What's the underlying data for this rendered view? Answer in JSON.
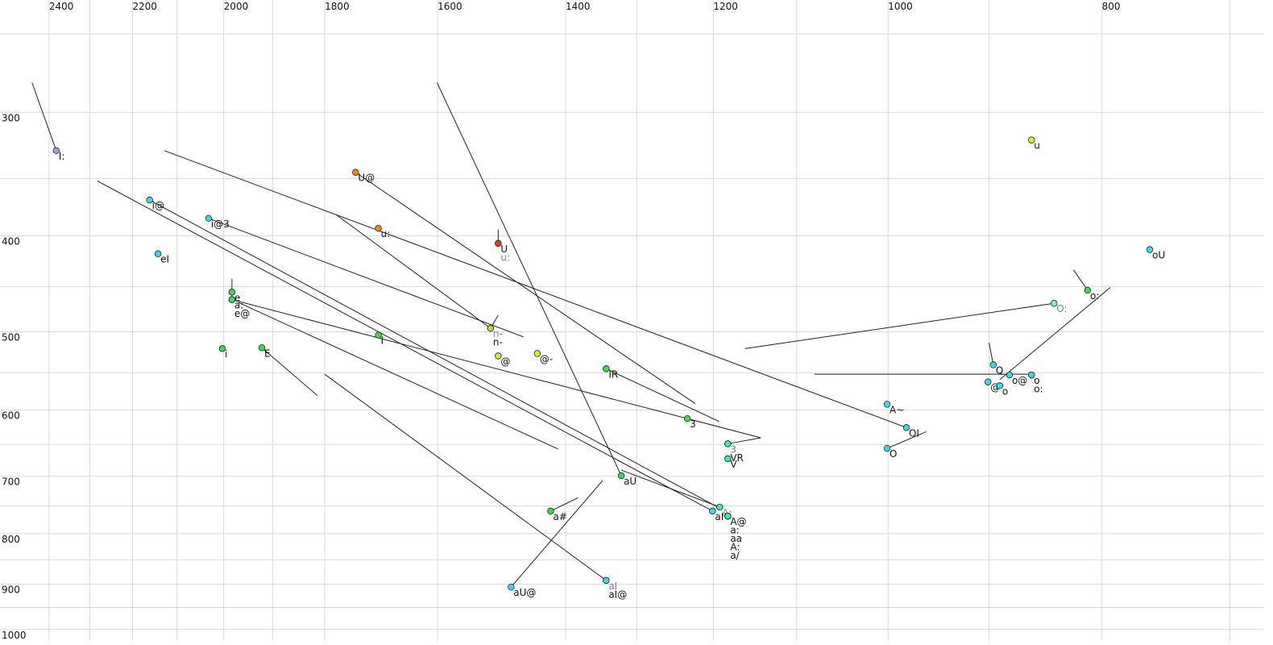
{
  "chart_data": {
    "type": "scatter",
    "log_scale": true,
    "grid": true,
    "xlim": [
      2526,
      676
    ],
    "ylim": [
      231,
      1027
    ],
    "xticks": [
      2400,
      2200,
      2000,
      1800,
      1600,
      1400,
      1200,
      1000,
      800
    ],
    "xgrid": [
      2300,
      2100,
      1900,
      1300,
      1100,
      900,
      700
    ],
    "yticks": [
      300,
      400,
      500,
      600,
      700,
      800,
      900,
      1000
    ],
    "ygrid": [
      250,
      350,
      450,
      550,
      650,
      750,
      850,
      950
    ],
    "points": [
      {
        "label": "I:",
        "x": 2382,
        "y": 328,
        "color": "#a89ce0"
      },
      {
        "label": "i@",
        "x": 2161,
        "y": 368,
        "color": "#40d8e8"
      },
      {
        "label": "i@3",
        "x": 2032,
        "y": 384,
        "color": "#40d8e8"
      },
      {
        "label": "eI",
        "x": 2142,
        "y": 417,
        "color": "#40d8e8"
      },
      {
        "label": "e",
        "x": 1983,
        "y": 456,
        "color": "#40d860"
      },
      {
        "label": "a:",
        "x": 1983,
        "y": 464,
        "color": "#40d860"
      },
      {
        "label": "e@",
        "x": 1983,
        "y": 464,
        "color": "#40d860"
      },
      {
        "label": "i",
        "x": 2003,
        "y": 520,
        "color": "#40d860"
      },
      {
        "label": "E",
        "x": 1922,
        "y": 519,
        "color": "#40d860"
      },
      {
        "label": "U@",
        "x": 1743,
        "y": 345,
        "color": "#f08c20"
      },
      {
        "label": "u:",
        "x": 1702,
        "y": 393,
        "color": "#f08c20"
      },
      {
        "label": "U",
        "x": 1502,
        "y": 407,
        "color": "#d84020"
      },
      {
        "label": "u:",
        "x": 1502,
        "y": 407,
        "color": "#d84020",
        "label_color": "#7080a8"
      },
      {
        "label": "n-",
        "x": 1514,
        "y": 496,
        "color": "#a8e040",
        "label_color": "#7080a8"
      },
      {
        "label": "n-",
        "x": 1514,
        "y": 496,
        "color": "#a8e040"
      },
      {
        "label": "@",
        "x": 1502,
        "y": 529,
        "color": "#c0f040"
      },
      {
        "label": "@-",
        "x": 1442,
        "y": 526,
        "color": "#e8f020"
      },
      {
        "label": "I",
        "x": 1702,
        "y": 504,
        "color": "#40d860"
      },
      {
        "label": "IR",
        "x": 1342,
        "y": 545,
        "color": "#40d860"
      },
      {
        "label": "3",
        "x": 1233,
        "y": 612,
        "color": "#40d860"
      },
      {
        "label": "3",
        "x": 1182,
        "y": 649,
        "color": "#40e8b0",
        "label_color": "#7080a8"
      },
      {
        "label": "VR",
        "x": 1182,
        "y": 649,
        "color": "#40e8b0"
      },
      {
        "label": "V",
        "x": 1182,
        "y": 672,
        "color": "#40e8b0"
      },
      {
        "label": "aU",
        "x": 1321,
        "y": 699,
        "color": "#40d860"
      },
      {
        "label": "a#",
        "x": 1422,
        "y": 759,
        "color": "#40d860"
      },
      {
        "label": "aU@",
        "x": 1482,
        "y": 906,
        "color": "#40d8e8"
      },
      {
        "label": "aI",
        "x": 1342,
        "y": 892,
        "color": "#40d8e8",
        "label_color": "#7080a8"
      },
      {
        "label": "aI@",
        "x": 1342,
        "y": 892,
        "color": "#40d8e8"
      },
      {
        "label": "A:",
        "x": 1192,
        "y": 752,
        "color": "#40e8c0",
        "label_color": "#7080a8"
      },
      {
        "label": "aI",
        "x": 1201,
        "y": 759,
        "color": "#40d8e8"
      },
      {
        "label": "A@",
        "x": 1182,
        "y": 768,
        "color": "#40e8b0"
      },
      {
        "label": "a:",
        "x": 1182,
        "y": 768,
        "color": "#40e8b0"
      },
      {
        "label": "aa",
        "x": 1182,
        "y": 768,
        "color": "#40e8b0"
      },
      {
        "label": "A:",
        "x": 1182,
        "y": 768,
        "color": "#40e8b0"
      },
      {
        "label": "a/",
        "x": 1182,
        "y": 768,
        "color": "#40e8b0"
      },
      {
        "label": "A~",
        "x": 1001,
        "y": 592,
        "color": "#40d8e8"
      },
      {
        "label": "OI",
        "x": 981,
        "y": 625,
        "color": "#40d8e8"
      },
      {
        "label": "O",
        "x": 1001,
        "y": 656,
        "color": "#40d8e8"
      },
      {
        "label": "Q",
        "x": 896,
        "y": 540,
        "color": "#40d8e8"
      },
      {
        "label": "@",
        "x": 901,
        "y": 562,
        "color": "#40d8e8"
      },
      {
        "label": "o",
        "x": 890,
        "y": 567,
        "color": "#40d8e8"
      },
      {
        "label": "o@",
        "x": 881,
        "y": 553,
        "color": "#40d8e8"
      },
      {
        "label": "o",
        "x": 861,
        "y": 553,
        "color": "#40d8e8"
      },
      {
        "label": "o:",
        "x": 861,
        "y": 553,
        "color": "#40d8e8"
      },
      {
        "label": "O:",
        "x": 841,
        "y": 468,
        "color": "#80f0e0",
        "label_color": "#7080a8"
      },
      {
        "label": "o:",
        "x": 812,
        "y": 454,
        "color": "#40d860"
      },
      {
        "label": "oU",
        "x": 761,
        "y": 413,
        "color": "#40d8e8"
      },
      {
        "label": "u",
        "x": 861,
        "y": 320,
        "color": "#e0f020"
      }
    ],
    "segments": [
      {
        "x": [
          2443,
          2382
        ],
        "y": [
          280,
          328
        ]
      },
      {
        "x": [
          2282,
          1201
        ],
        "y": [
          352,
          759
        ]
      },
      {
        "x": [
          2161,
          1192
        ],
        "y": [
          368,
          754
        ]
      },
      {
        "x": [
          2128,
          981
        ],
        "y": [
          328,
          625
        ]
      },
      {
        "x": [
          2032,
          1463
        ],
        "y": [
          384,
          506
        ]
      },
      {
        "x": [
          1983,
          1983
        ],
        "y": [
          442,
          464
        ]
      },
      {
        "x": [
          1983,
          1142,
          1182
        ],
        "y": [
          464,
          640,
          649
        ]
      },
      {
        "x": [
          1970,
          1411
        ],
        "y": [
          467,
          657
        ]
      },
      {
        "x": [
          1922,
          1814
        ],
        "y": [
          519,
          580
        ]
      },
      {
        "x": [
          1800,
          1342
        ],
        "y": [
          552,
          892
        ]
      },
      {
        "x": [
          1778,
          1514
        ],
        "y": [
          381,
          496
        ]
      },
      {
        "x": [
          1743,
          1223
        ],
        "y": [
          345,
          591
        ]
      },
      {
        "x": [
          1601,
          1321
        ],
        "y": [
          280,
          699
        ]
      },
      {
        "x": [
          1514,
          1502
        ],
        "y": [
          496,
          481
        ]
      },
      {
        "x": [
          1502,
          1502
        ],
        "y": [
          394,
          407
        ]
      },
      {
        "x": [
          1342,
          1193
        ],
        "y": [
          545,
          616
        ]
      },
      {
        "x": [
          1482,
          1347
        ],
        "y": [
          906,
          707
        ]
      },
      {
        "x": [
          1422,
          1382
        ],
        "y": [
          759,
          736
        ]
      },
      {
        "x": [
          1321,
          1192
        ],
        "y": [
          690,
          752
        ]
      },
      {
        "x": [
          1161,
          841
        ],
        "y": [
          520,
          468
        ]
      },
      {
        "x": [
          1080,
          861
        ],
        "y": [
          552,
          552
        ]
      },
      {
        "x": [
          1001,
          961
        ],
        "y": [
          656,
          631
        ]
      },
      {
        "x": [
          900,
          896
        ],
        "y": [
          513,
          540
        ]
      },
      {
        "x": [
          890,
          793
        ],
        "y": [
          559,
          451
        ]
      },
      {
        "x": [
          824,
          812
        ],
        "y": [
          433,
          454
        ]
      }
    ]
  }
}
